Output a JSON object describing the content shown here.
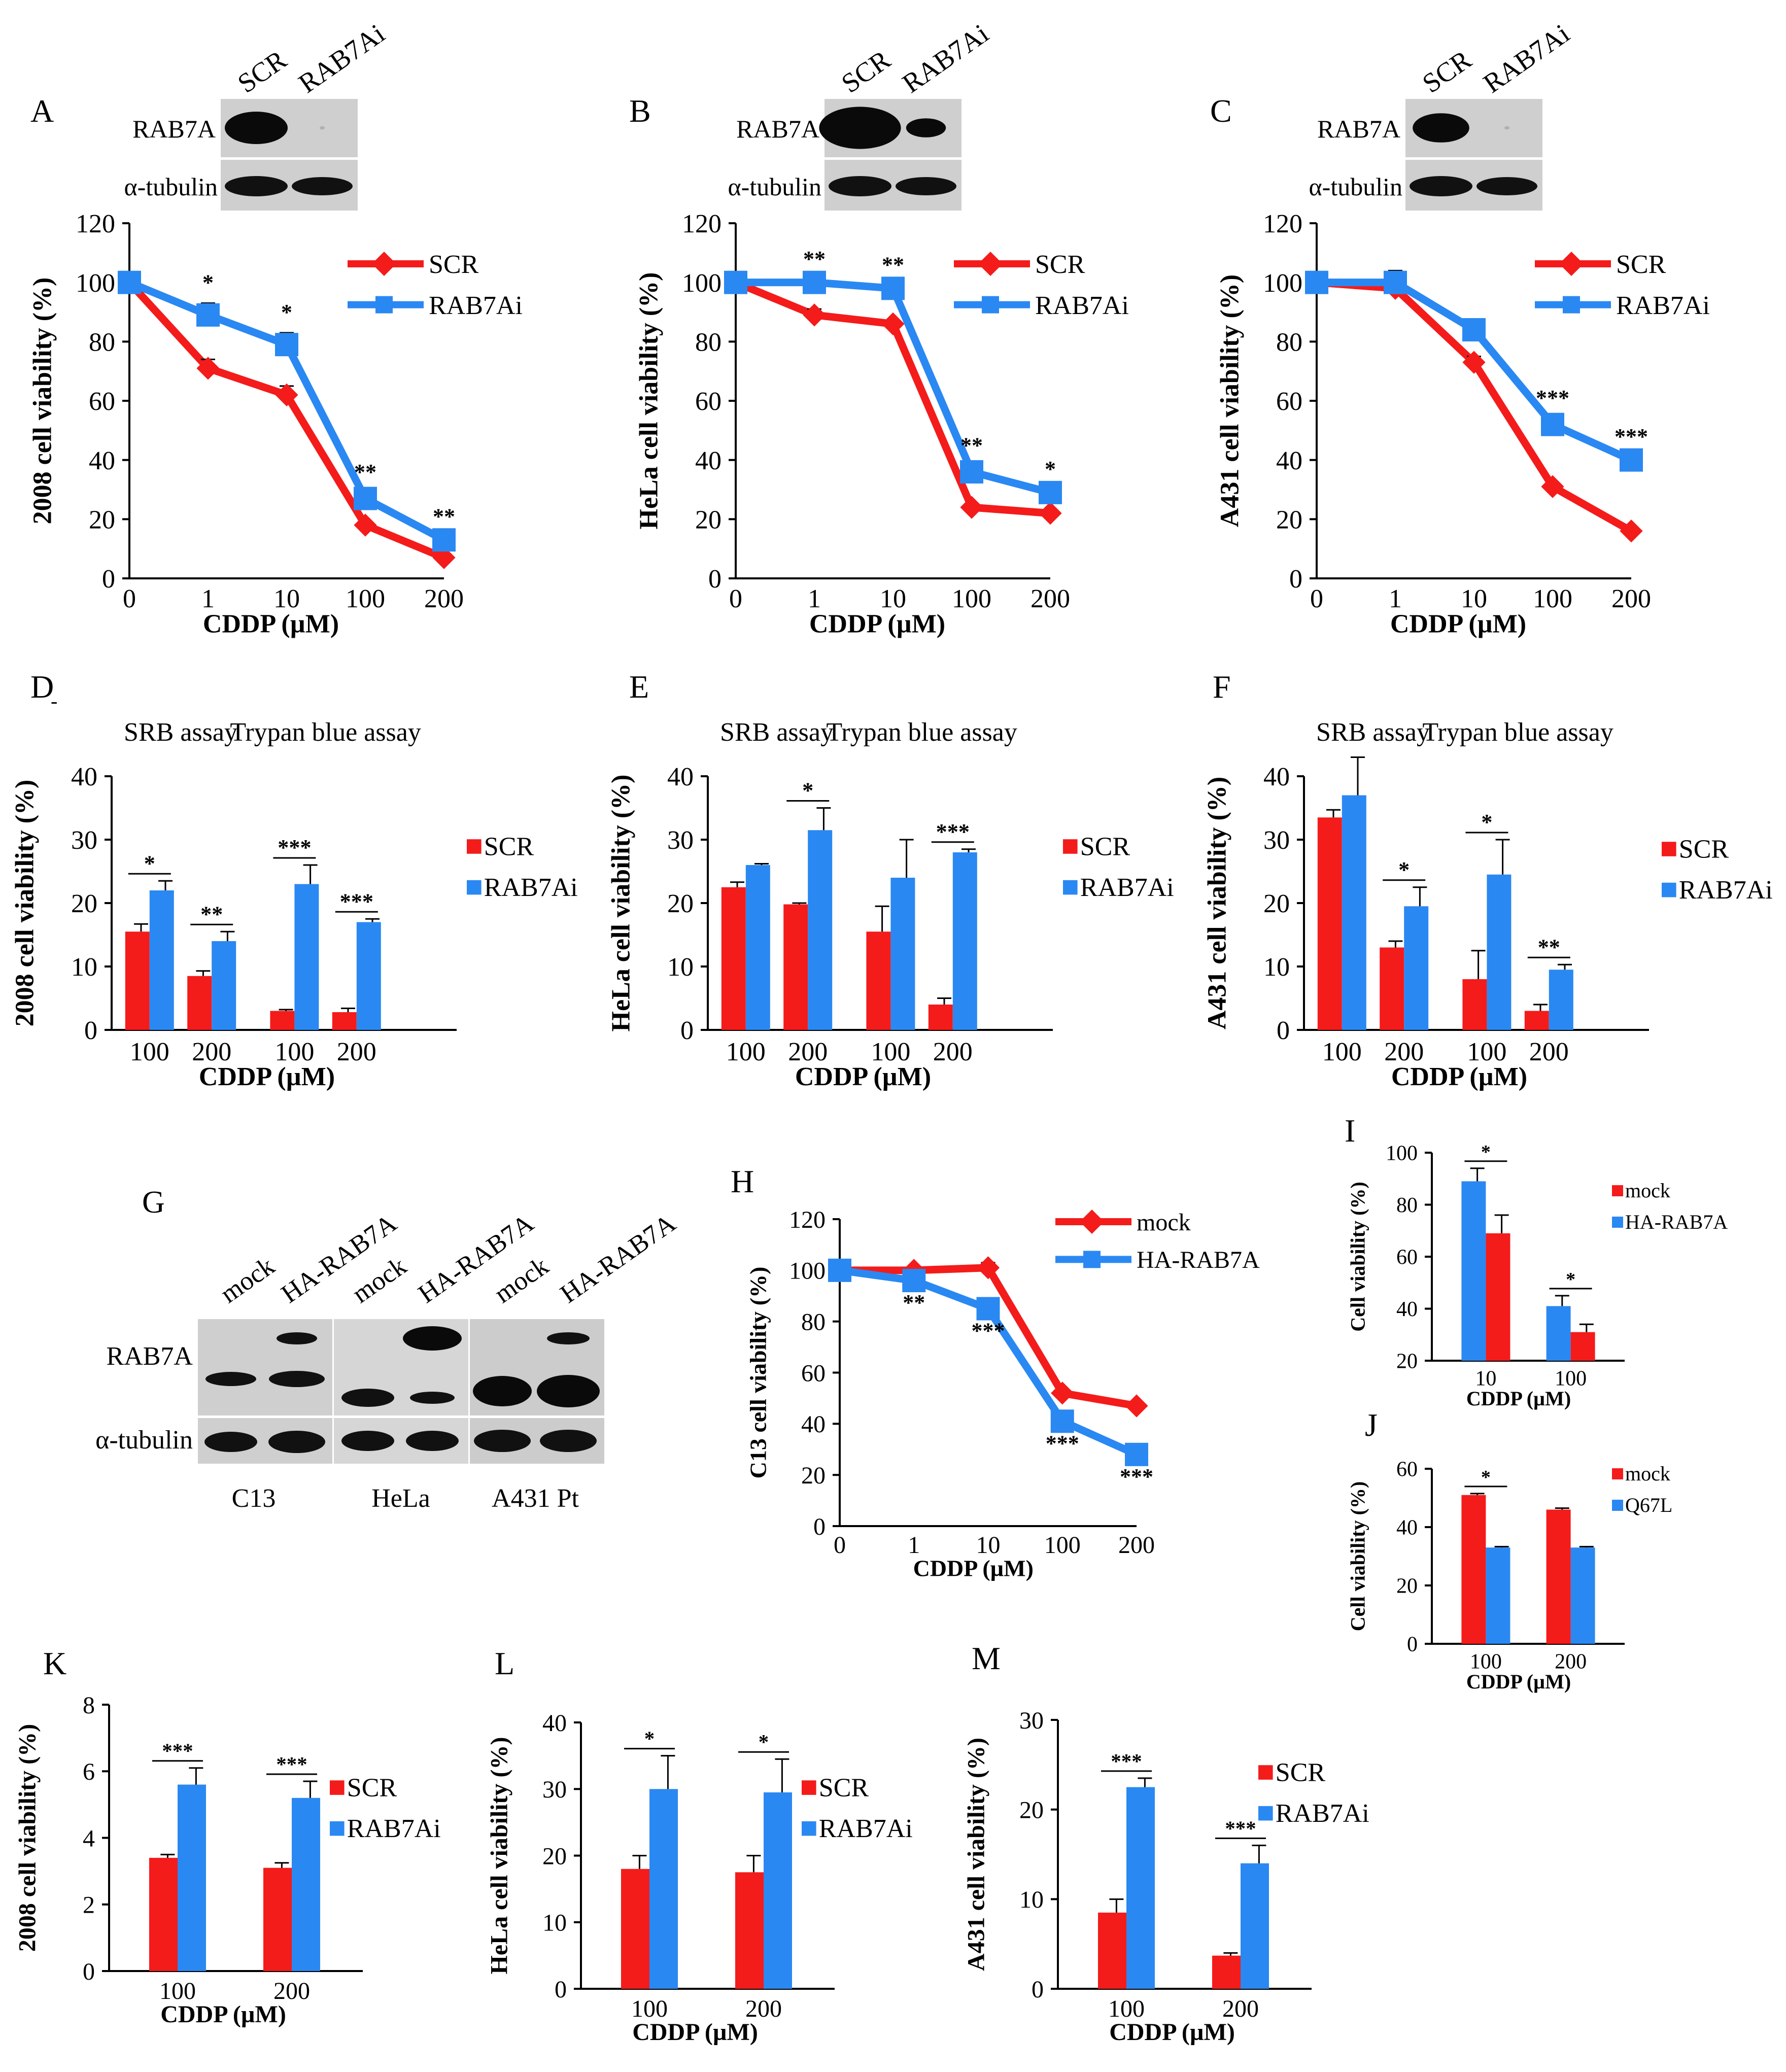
{
  "colors": {
    "scr": "#f41b1b",
    "rab": "#2a88f2",
    "axis": "#000000",
    "blot_bg": "#cfcfcf",
    "band": "#0a0a0a"
  },
  "chart_data": [
    {
      "id": "A",
      "panel": "A",
      "type": "line",
      "x": [
        "0",
        "1",
        "10",
        "100",
        "200"
      ],
      "ylim": [
        0,
        120
      ],
      "yticks": [
        0,
        20,
        40,
        60,
        80,
        100,
        120
      ],
      "ylabel": "2008 cell viability (%)",
      "xlabel": "CDDP (µM)",
      "series": [
        {
          "name": "SCR",
          "color": "scr",
          "values": [
            100,
            71,
            62,
            18,
            7
          ],
          "errors": [
            0,
            3,
            3,
            1,
            1
          ]
        },
        {
          "name": "RAB7Ai",
          "color": "rab",
          "values": [
            100,
            89,
            79,
            27,
            13
          ],
          "errors": [
            0,
            4,
            4,
            2,
            1
          ]
        }
      ],
      "stars": [
        "",
        "*",
        "*",
        "**",
        "**"
      ],
      "legend": [
        "SCR",
        "RAB7Ai"
      ],
      "blot": {
        "lanes": [
          "SCR",
          "RAB7Ai"
        ],
        "rows": [
          "RAB7A",
          "α-tubulin"
        ]
      }
    },
    {
      "id": "B",
      "panel": "B",
      "type": "line",
      "x": [
        "0",
        "1",
        "10",
        "100",
        "200"
      ],
      "ylim": [
        0,
        120
      ],
      "yticks": [
        0,
        20,
        40,
        60,
        80,
        100,
        120
      ],
      "ylabel": "HeLa cell viability (%)",
      "xlabel": "CDDP (µM)",
      "series": [
        {
          "name": "SCR",
          "color": "scr",
          "values": [
            100,
            89,
            86,
            24,
            22
          ],
          "errors": [
            0,
            2,
            1,
            1,
            1
          ]
        },
        {
          "name": "RAB7Ai",
          "color": "rab",
          "values": [
            100,
            100,
            98,
            36,
            29
          ],
          "errors": [
            0,
            1,
            1,
            2,
            1
          ]
        }
      ],
      "stars": [
        "",
        "**",
        "**",
        "**",
        "*"
      ],
      "legend": [
        "SCR",
        "RAB7Ai"
      ],
      "blot": {
        "lanes": [
          "SCR",
          "RAB7Ai"
        ],
        "rows": [
          "RAB7A",
          "α-tubulin"
        ]
      }
    },
    {
      "id": "C",
      "panel": "C",
      "type": "line",
      "x": [
        "0",
        "1",
        "10",
        "100",
        "200"
      ],
      "ylim": [
        0,
        120
      ],
      "yticks": [
        0,
        20,
        40,
        60,
        80,
        100,
        120
      ],
      "ylabel": "A431 cell viability (%)",
      "xlabel": "CDDP (µM)",
      "series": [
        {
          "name": "SCR",
          "color": "scr",
          "values": [
            100,
            98,
            73,
            31,
            16
          ],
          "errors": [
            0,
            1,
            2,
            1,
            1
          ]
        },
        {
          "name": "RAB7Ai",
          "color": "rab",
          "values": [
            100,
            100,
            84,
            52,
            40
          ],
          "errors": [
            0,
            4,
            3,
            2,
            1
          ]
        }
      ],
      "stars": [
        "",
        "",
        "",
        "***",
        "***"
      ],
      "legend": [
        "SCR",
        "RAB7Ai"
      ],
      "blot": {
        "lanes": [
          "SCR",
          "RAB7Ai"
        ],
        "rows": [
          "RAB7A",
          "α-tubulin"
        ]
      }
    },
    {
      "id": "D",
      "panel": "D",
      "type": "bar",
      "categories": [
        "100",
        "200",
        "100",
        "200"
      ],
      "ylim": [
        0,
        40
      ],
      "yticks": [
        0,
        10,
        20,
        30,
        40
      ],
      "ylabel": "2008 cell viability (%)",
      "xlabel": "CDDP (µM)",
      "groups": [
        "SRB assay",
        "Trypan blue assay"
      ],
      "series": [
        {
          "name": "SCR",
          "color": "scr",
          "values": [
            15.5,
            8.5,
            3,
            2.8
          ],
          "errors": [
            1.2,
            0.8,
            0.2,
            0.6
          ]
        },
        {
          "name": "RAB7Ai",
          "color": "rab",
          "values": [
            22,
            14,
            23,
            17
          ],
          "errors": [
            1.5,
            1.5,
            3,
            0.5
          ]
        }
      ],
      "stars": [
        "*",
        "**",
        "***",
        "***"
      ],
      "legend": [
        "SCR",
        "RAB7Ai"
      ]
    },
    {
      "id": "E",
      "panel": "E",
      "type": "bar",
      "categories": [
        "100",
        "200",
        "100",
        "200"
      ],
      "ylim": [
        0,
        40
      ],
      "yticks": [
        0,
        10,
        20,
        30,
        40
      ],
      "ylabel": "HeLa cell viability (%)",
      "xlabel": "CDDP (µM)",
      "groups": [
        "SRB assay",
        "Trypan blue assay"
      ],
      "series": [
        {
          "name": "SCR",
          "color": "scr",
          "values": [
            22.5,
            19.8,
            15.5,
            4
          ],
          "errors": [
            0.8,
            0.2,
            4,
            1
          ]
        },
        {
          "name": "RAB7Ai",
          "color": "rab",
          "values": [
            26,
            31.5,
            24,
            28
          ],
          "errors": [
            0.2,
            3.5,
            6,
            0.5
          ]
        }
      ],
      "stars": [
        "",
        "*",
        "",
        "***"
      ],
      "legend": [
        "SCR",
        "RAB7Ai"
      ]
    },
    {
      "id": "F",
      "panel": "F",
      "type": "bar",
      "categories": [
        "100",
        "200",
        "100",
        "200"
      ],
      "ylim": [
        0,
        40
      ],
      "yticks": [
        0,
        10,
        20,
        30,
        40
      ],
      "ylabel": "A431 cell viability (%)",
      "xlabel": "CDDP (µM)",
      "groups": [
        "SRB assay",
        "Trypan blue assay"
      ],
      "series": [
        {
          "name": "SCR",
          "color": "scr",
          "values": [
            33.5,
            13,
            8,
            3
          ],
          "errors": [
            1.2,
            1,
            4.5,
            1
          ]
        },
        {
          "name": "RAB7Ai",
          "color": "rab",
          "values": [
            37,
            19.5,
            24.5,
            9.5
          ],
          "errors": [
            6,
            3,
            5.5,
            0.8
          ]
        }
      ],
      "stars": [
        "",
        "*",
        "*",
        "**"
      ],
      "legend": [
        "SCR",
        "RAB7Ai"
      ]
    },
    {
      "id": "H",
      "panel": "H",
      "type": "line",
      "x": [
        "0",
        "1",
        "10",
        "100",
        "200"
      ],
      "ylim": [
        0,
        120
      ],
      "yticks": [
        0,
        20,
        40,
        60,
        80,
        100,
        120
      ],
      "ylabel": "C13 cell viability (%)",
      "xlabel": "CDDP (µM)",
      "series": [
        {
          "name": "mock",
          "color": "scr",
          "values": [
            100,
            100,
            101,
            52,
            47
          ],
          "errors": [
            0,
            1,
            2,
            1,
            1
          ]
        },
        {
          "name": "HA-RAB7A",
          "color": "rab",
          "values": [
            100,
            96,
            85,
            41,
            28
          ],
          "errors": [
            0,
            1,
            1,
            1,
            1
          ]
        }
      ],
      "stars": [
        "",
        "**",
        "***",
        "***",
        "***"
      ],
      "legend": [
        "mock",
        "HA-RAB7A"
      ]
    },
    {
      "id": "I",
      "panel": "I",
      "type": "bar",
      "categories": [
        "10",
        "100"
      ],
      "ylim": [
        20,
        100
      ],
      "yticks": [
        20,
        40,
        60,
        80,
        100
      ],
      "ylabel": "Cell viability (%)",
      "xlabel": "CDDP (µM)",
      "series": [
        {
          "name": "HA-RAB7A",
          "color": "rab",
          "values": [
            89,
            41
          ],
          "errors": [
            5,
            4
          ]
        },
        {
          "name": "mock",
          "color": "scr",
          "values": [
            69,
            31
          ],
          "errors": [
            7,
            3
          ]
        }
      ],
      "stars": [
        "*",
        "*"
      ],
      "legend": [
        "mock",
        "HA-RAB7A"
      ]
    },
    {
      "id": "J",
      "panel": "J",
      "type": "bar",
      "categories": [
        "100",
        "200"
      ],
      "ylim": [
        0,
        60
      ],
      "yticks": [
        0,
        20,
        40,
        60
      ],
      "ylabel": "Cell viability (%)",
      "xlabel": "CDDP (µM)",
      "series": [
        {
          "name": "mock",
          "color": "scr",
          "values": [
            51,
            46
          ],
          "errors": [
            0.5,
            0.5
          ]
        },
        {
          "name": "Q67L",
          "color": "rab",
          "values": [
            33,
            33
          ],
          "errors": [
            0.3,
            0.3
          ]
        }
      ],
      "stars": [
        "*",
        ""
      ],
      "legend": [
        "mock",
        "Q67L"
      ]
    },
    {
      "id": "K",
      "panel": "K",
      "type": "bar",
      "categories": [
        "100",
        "200"
      ],
      "ylim": [
        0,
        8
      ],
      "yticks": [
        0,
        2,
        4,
        6,
        8
      ],
      "ylabel": "2008 cell viability (%)",
      "xlabel": "CDDP (µM)",
      "series": [
        {
          "name": "SCR",
          "color": "scr",
          "values": [
            3.4,
            3.1
          ],
          "errors": [
            0.1,
            0.15
          ]
        },
        {
          "name": "RAB7Ai",
          "color": "rab",
          "values": [
            5.6,
            5.2
          ],
          "errors": [
            0.5,
            0.5
          ]
        }
      ],
      "stars": [
        "***",
        "***"
      ],
      "legend": [
        "SCR",
        "RAB7Ai"
      ]
    },
    {
      "id": "L",
      "panel": "L",
      "type": "bar",
      "categories": [
        "100",
        "200"
      ],
      "ylim": [
        0,
        40
      ],
      "yticks": [
        0,
        10,
        20,
        30,
        40
      ],
      "ylabel": "HeLa cell viability (%)",
      "xlabel": "CDDP (µM)",
      "series": [
        {
          "name": "SCR",
          "color": "scr",
          "values": [
            18,
            17.5
          ],
          "errors": [
            2,
            2.5
          ]
        },
        {
          "name": "RAB7Ai",
          "color": "rab",
          "values": [
            30,
            29.5
          ],
          "errors": [
            5,
            5
          ]
        }
      ],
      "stars": [
        "*",
        "*"
      ],
      "legend": [
        "SCR",
        "RAB7Ai"
      ]
    },
    {
      "id": "M",
      "panel": "M",
      "type": "bar",
      "categories": [
        "100",
        "200"
      ],
      "ylim": [
        0,
        30
      ],
      "yticks": [
        0,
        10,
        20,
        30
      ],
      "ylabel": "A431 cell viability (%)",
      "xlabel": "CDDP (µM)",
      "series": [
        {
          "name": "SCR",
          "color": "scr",
          "values": [
            8.5,
            3.7
          ],
          "errors": [
            1.5,
            0.3
          ]
        },
        {
          "name": "RAB7Ai",
          "color": "rab",
          "values": [
            22.5,
            14
          ],
          "errors": [
            1,
            2
          ]
        }
      ],
      "stars": [
        "***",
        "***"
      ],
      "legend": [
        "SCR",
        "RAB7Ai"
      ]
    }
  ],
  "panel_g": {
    "label": "G",
    "lanes": [
      "mock",
      "HA-RAB7A",
      "mock",
      "HA-RAB7A",
      "mock",
      "HA-RAB7A"
    ],
    "rows": [
      "RAB7A",
      "α-tubulin"
    ],
    "cells": [
      "C13",
      "HeLa",
      "A431 Pt"
    ]
  },
  "panel_d_mark": "-"
}
